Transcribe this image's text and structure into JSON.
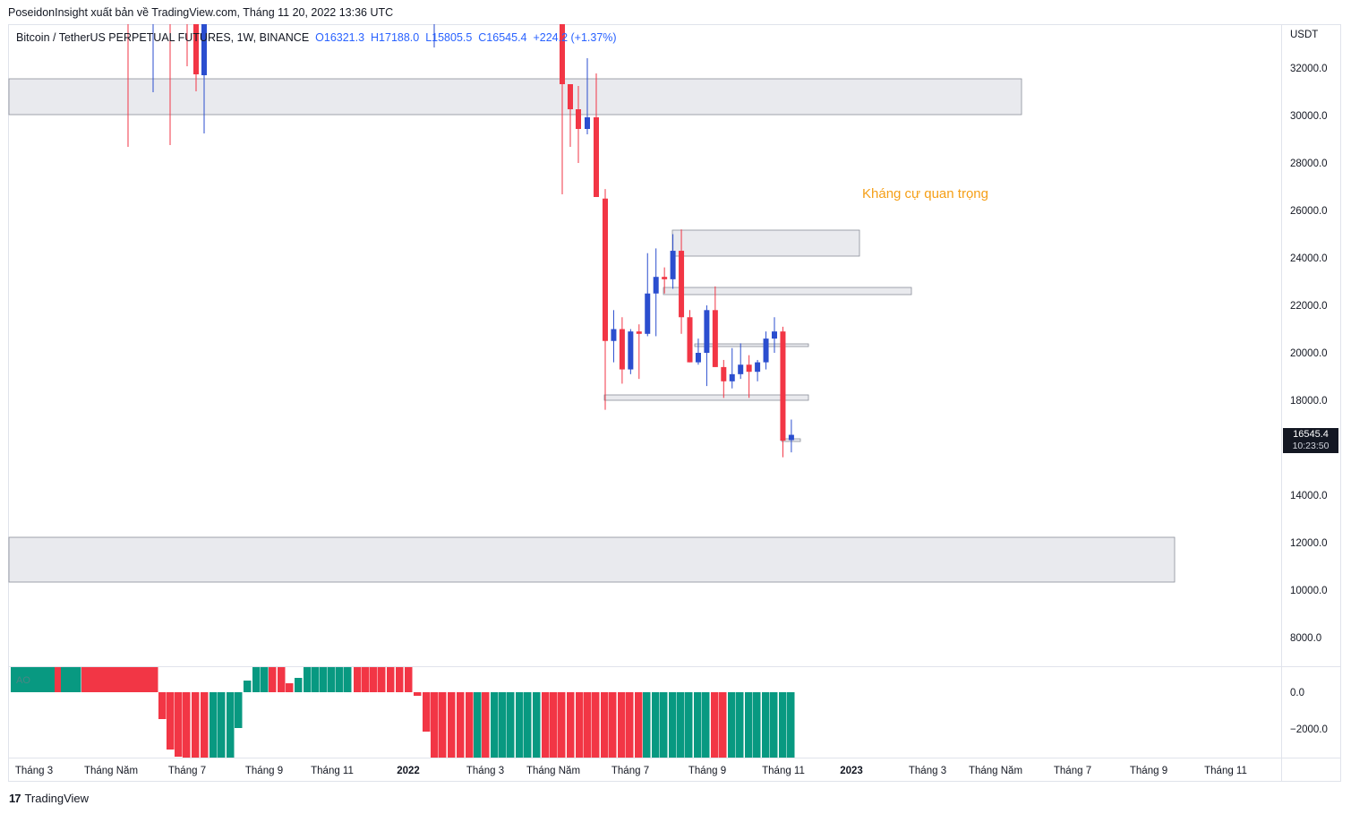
{
  "header": {
    "credit": "PoseidonInsight xuất bản về TradingView.com, Tháng 11 20, 2022 13:36 UTC"
  },
  "legend": {
    "symbol": "Bitcoin / TetherUS PERPETUAL FUTURES, 1W, BINANCE",
    "open": "O16321.3",
    "high": "H17188.0",
    "low": "L15805.5",
    "close": "C16545.4",
    "change": "+224.2 (+1.37%)"
  },
  "annotation": "Kháng cự quan trọng",
  "price_axis": {
    "currency": "USDT",
    "ticks": [
      "32000.0",
      "30000.0",
      "28000.0",
      "26000.0",
      "24000.0",
      "22000.0",
      "20000.0",
      "18000.0",
      "14000.0",
      "12000.0",
      "10000.0",
      "8000.0"
    ],
    "last_price": "16545.4",
    "countdown": "10:23:50"
  },
  "oscillator": {
    "label": "AO",
    "ticks": [
      "0.0",
      "−2000.0"
    ]
  },
  "time_axis": {
    "labels": [
      "Tháng 3",
      "Tháng Năm",
      "Tháng 7",
      "Tháng 9",
      "Tháng 11",
      "2022",
      "Tháng 3",
      "Tháng Năm",
      "Tháng 7",
      "Tháng 9",
      "Tháng 11",
      "2023",
      "Tháng 3",
      "Tháng Năm",
      "Tháng 7",
      "Tháng 9",
      "Tháng 11"
    ]
  },
  "footer": {
    "logo": "17",
    "brand": "TradingView"
  },
  "colors": {
    "up": "#2b4ecf",
    "down": "#f23645",
    "osc_up": "#089981",
    "osc_down": "#f23645",
    "annotation": "#f59f16",
    "zone": "#e8e9ee"
  },
  "chart_data": {
    "type": "candlestick",
    "ylim": [
      7000,
      33500
    ],
    "candles": [
      {
        "date": "2022-06-13",
        "o": 26500,
        "h": 26900,
        "l": 17600,
        "c": 20500
      },
      {
        "date": "2022-06-20",
        "o": 20500,
        "h": 21800,
        "l": 19600,
        "c": 21000
      },
      {
        "date": "2022-06-27",
        "o": 21000,
        "h": 21500,
        "l": 18700,
        "c": 19300
      },
      {
        "date": "2022-07-04",
        "o": 19300,
        "h": 21000,
        "l": 19100,
        "c": 20900
      },
      {
        "date": "2022-07-11",
        "o": 20900,
        "h": 21200,
        "l": 18900,
        "c": 20800
      },
      {
        "date": "2022-07-18",
        "o": 20800,
        "h": 24200,
        "l": 20700,
        "c": 22500
      },
      {
        "date": "2022-07-25",
        "o": 22500,
        "h": 24400,
        "l": 20700,
        "c": 23200
      },
      {
        "date": "2022-08-01",
        "o": 23200,
        "h": 23600,
        "l": 22500,
        "c": 23100
      },
      {
        "date": "2022-08-08",
        "o": 23100,
        "h": 25000,
        "l": 22700,
        "c": 24300
      },
      {
        "date": "2022-08-15",
        "o": 24300,
        "h": 25200,
        "l": 20800,
        "c": 21500
      },
      {
        "date": "2022-08-22",
        "o": 21500,
        "h": 21800,
        "l": 19600,
        "c": 19600
      },
      {
        "date": "2022-08-29",
        "o": 19600,
        "h": 20600,
        "l": 19500,
        "c": 20000
      },
      {
        "date": "2022-09-05",
        "o": 20000,
        "h": 22000,
        "l": 18600,
        "c": 21800
      },
      {
        "date": "2022-09-12",
        "o": 21800,
        "h": 22800,
        "l": 19400,
        "c": 19400
      },
      {
        "date": "2022-09-19",
        "o": 19400,
        "h": 19700,
        "l": 18100,
        "c": 18800
      },
      {
        "date": "2022-09-26",
        "o": 18800,
        "h": 20200,
        "l": 18500,
        "c": 19100
      },
      {
        "date": "2022-10-03",
        "o": 19100,
        "h": 20400,
        "l": 18900,
        "c": 19500
      },
      {
        "date": "2022-10-10",
        "o": 19500,
        "h": 19900,
        "l": 18100,
        "c": 19200
      },
      {
        "date": "2022-10-17",
        "o": 19200,
        "h": 19700,
        "l": 18800,
        "c": 19600
      },
      {
        "date": "2022-10-24",
        "o": 19600,
        "h": 20900,
        "l": 19300,
        "c": 20600
      },
      {
        "date": "2022-10-31",
        "o": 20600,
        "h": 21500,
        "l": 20000,
        "c": 20900
      },
      {
        "date": "2022-11-07",
        "o": 20900,
        "h": 21100,
        "l": 15600,
        "c": 16300
      },
      {
        "date": "2022-11-14",
        "o": 16321.3,
        "h": 17188,
        "l": 15805.5,
        "c": 16545.4
      }
    ]
  }
}
